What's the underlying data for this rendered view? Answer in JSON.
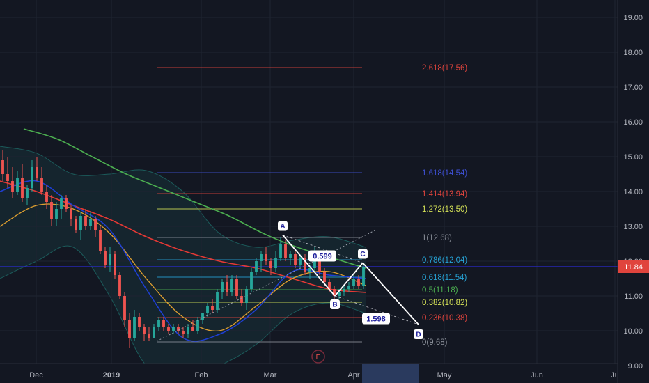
{
  "chart_data": {
    "type": "candlestick",
    "x_axis": {
      "tick_labels": [
        "Dec",
        "2019",
        "Feb",
        "Mar",
        "Apr",
        "May",
        "Jun",
        "Ju"
      ]
    },
    "y_axis": {
      "ylim": [
        8.5,
        19.5
      ],
      "tick_values": [
        9.0,
        10.0,
        11.0,
        12.0,
        13.0,
        14.0,
        15.0,
        16.0,
        17.0,
        18.0,
        19.0
      ],
      "tick_labels": [
        "9.00",
        "10.00",
        "11.00",
        "12.00",
        "13.00",
        "14.00",
        "15.00",
        "16.00",
        "17.00",
        "18.00",
        "19.00"
      ]
    },
    "last_price": {
      "value": 11.84,
      "label": "11.84"
    },
    "candles": [
      {
        "o": 14.9,
        "h": 15.2,
        "l": 14.3,
        "c": 14.5
      },
      {
        "o": 14.5,
        "h": 15.0,
        "l": 14.1,
        "c": 14.3
      },
      {
        "o": 14.3,
        "h": 14.7,
        "l": 13.8,
        "c": 14.0
      },
      {
        "o": 14.0,
        "h": 14.6,
        "l": 13.9,
        "c": 14.4
      },
      {
        "o": 14.4,
        "h": 14.8,
        "l": 13.7,
        "c": 13.8
      },
      {
        "o": 13.8,
        "h": 14.2,
        "l": 13.6,
        "c": 14.1
      },
      {
        "o": 14.1,
        "h": 14.9,
        "l": 14.0,
        "c": 14.7
      },
      {
        "o": 14.7,
        "h": 15.0,
        "l": 14.3,
        "c": 14.4
      },
      {
        "o": 14.4,
        "h": 14.7,
        "l": 13.9,
        "c": 14.0
      },
      {
        "o": 14.0,
        "h": 14.2,
        "l": 13.5,
        "c": 13.7
      },
      {
        "o": 13.7,
        "h": 13.9,
        "l": 13.0,
        "c": 13.2
      },
      {
        "o": 13.2,
        "h": 13.7,
        "l": 13.0,
        "c": 13.5
      },
      {
        "o": 13.5,
        "h": 13.9,
        "l": 13.2,
        "c": 13.8
      },
      {
        "o": 13.8,
        "h": 13.9,
        "l": 13.4,
        "c": 13.5
      },
      {
        "o": 13.5,
        "h": 13.6,
        "l": 13.0,
        "c": 13.2
      },
      {
        "o": 13.2,
        "h": 13.3,
        "l": 12.8,
        "c": 12.9
      },
      {
        "o": 12.9,
        "h": 13.4,
        "l": 12.6,
        "c": 13.3
      },
      {
        "o": 13.3,
        "h": 13.5,
        "l": 12.9,
        "c": 13.0
      },
      {
        "o": 13.0,
        "h": 13.4,
        "l": 12.9,
        "c": 13.2
      },
      {
        "o": 13.2,
        "h": 13.3,
        "l": 12.7,
        "c": 12.9
      },
      {
        "o": 12.9,
        "h": 13.0,
        "l": 12.2,
        "c": 12.3
      },
      {
        "o": 12.3,
        "h": 12.4,
        "l": 11.8,
        "c": 11.9
      },
      {
        "o": 11.9,
        "h": 12.4,
        "l": 11.7,
        "c": 12.2
      },
      {
        "o": 12.2,
        "h": 12.3,
        "l": 11.5,
        "c": 11.6
      },
      {
        "o": 11.6,
        "h": 11.7,
        "l": 10.9,
        "c": 11.0
      },
      {
        "o": 11.0,
        "h": 11.1,
        "l": 10.1,
        "c": 10.3
      },
      {
        "o": 10.3,
        "h": 10.5,
        "l": 9.5,
        "c": 9.8
      },
      {
        "o": 9.8,
        "h": 10.6,
        "l": 9.7,
        "c": 10.4
      },
      {
        "o": 10.4,
        "h": 10.5,
        "l": 10.0,
        "c": 10.1
      },
      {
        "o": 10.1,
        "h": 10.2,
        "l": 9.7,
        "c": 9.9
      },
      {
        "o": 9.9,
        "h": 10.1,
        "l": 9.7,
        "c": 9.8
      },
      {
        "o": 9.8,
        "h": 10.2,
        "l": 9.8,
        "c": 10.1
      },
      {
        "o": 10.1,
        "h": 10.4,
        "l": 10.0,
        "c": 10.3
      },
      {
        "o": 10.3,
        "h": 10.4,
        "l": 10.0,
        "c": 10.1
      },
      {
        "o": 10.1,
        "h": 10.2,
        "l": 9.9,
        "c": 10.0
      },
      {
        "o": 10.0,
        "h": 10.2,
        "l": 9.9,
        "c": 10.1
      },
      {
        "o": 10.1,
        "h": 10.2,
        "l": 9.9,
        "c": 10.0
      },
      {
        "o": 10.0,
        "h": 10.1,
        "l": 9.8,
        "c": 9.9
      },
      {
        "o": 9.9,
        "h": 10.2,
        "l": 9.8,
        "c": 10.1
      },
      {
        "o": 10.1,
        "h": 10.3,
        "l": 10.0,
        "c": 10.0
      },
      {
        "o": 10.0,
        "h": 10.4,
        "l": 9.9,
        "c": 10.3
      },
      {
        "o": 10.3,
        "h": 10.5,
        "l": 10.2,
        "c": 10.5
      },
      {
        "o": 10.5,
        "h": 10.8,
        "l": 10.4,
        "c": 10.7
      },
      {
        "o": 10.7,
        "h": 10.9,
        "l": 10.5,
        "c": 10.6
      },
      {
        "o": 10.6,
        "h": 11.2,
        "l": 10.5,
        "c": 11.1
      },
      {
        "o": 11.1,
        "h": 11.5,
        "l": 10.9,
        "c": 11.4
      },
      {
        "o": 11.4,
        "h": 11.6,
        "l": 11.0,
        "c": 11.1
      },
      {
        "o": 11.1,
        "h": 11.6,
        "l": 11.0,
        "c": 11.5
      },
      {
        "o": 11.5,
        "h": 11.6,
        "l": 10.9,
        "c": 11.0
      },
      {
        "o": 11.0,
        "h": 11.2,
        "l": 10.7,
        "c": 10.8
      },
      {
        "o": 10.8,
        "h": 11.3,
        "l": 10.6,
        "c": 11.2
      },
      {
        "o": 11.2,
        "h": 11.8,
        "l": 11.1,
        "c": 11.7
      },
      {
        "o": 11.7,
        "h": 12.1,
        "l": 11.6,
        "c": 12.0
      },
      {
        "o": 12.0,
        "h": 12.3,
        "l": 11.7,
        "c": 12.2
      },
      {
        "o": 12.2,
        "h": 12.4,
        "l": 11.9,
        "c": 12.0
      },
      {
        "o": 12.0,
        "h": 12.1,
        "l": 11.6,
        "c": 11.8
      },
      {
        "o": 11.8,
        "h": 12.3,
        "l": 11.7,
        "c": 12.1
      },
      {
        "o": 12.1,
        "h": 12.7,
        "l": 12.0,
        "c": 12.5
      },
      {
        "o": 12.5,
        "h": 12.6,
        "l": 12.0,
        "c": 12.1
      },
      {
        "o": 12.1,
        "h": 12.3,
        "l": 11.9,
        "c": 12.2
      },
      {
        "o": 12.2,
        "h": 12.3,
        "l": 11.8,
        "c": 11.9
      },
      {
        "o": 11.9,
        "h": 12.2,
        "l": 11.8,
        "c": 12.1
      },
      {
        "o": 12.1,
        "h": 12.2,
        "l": 11.6,
        "c": 11.7
      },
      {
        "o": 11.7,
        "h": 11.9,
        "l": 11.5,
        "c": 11.8
      },
      {
        "o": 11.8,
        "h": 12.4,
        "l": 11.7,
        "c": 12.2
      },
      {
        "o": 12.2,
        "h": 12.3,
        "l": 11.6,
        "c": 11.7
      },
      {
        "o": 11.7,
        "h": 11.8,
        "l": 11.3,
        "c": 11.4
      },
      {
        "o": 11.4,
        "h": 11.5,
        "l": 11.1,
        "c": 11.2
      },
      {
        "o": 11.2,
        "h": 11.3,
        "l": 10.9,
        "c": 11.0
      },
      {
        "o": 11.0,
        "h": 11.2,
        "l": 10.9,
        "c": 11.1
      },
      {
        "o": 11.1,
        "h": 11.3,
        "l": 11.0,
        "c": 11.2
      },
      {
        "o": 11.2,
        "h": 11.4,
        "l": 11.1,
        "c": 11.3
      },
      {
        "o": 11.3,
        "h": 11.6,
        "l": 11.2,
        "c": 11.5
      },
      {
        "o": 11.5,
        "h": 11.6,
        "l": 11.2,
        "c": 11.3
      },
      {
        "o": 11.3,
        "h": 11.9,
        "l": 11.2,
        "c": 11.84
      }
    ],
    "indicators": {
      "ma_green": [
        15.8,
        15.5,
        15.0,
        14.5,
        14.1,
        13.7,
        13.3,
        12.8,
        12.4,
        12.1,
        11.8
      ],
      "ma_red": [
        14.3,
        14.0,
        13.6,
        13.2,
        12.7,
        12.3,
        12.0,
        11.8,
        11.5,
        11.2,
        11.1
      ],
      "ma_orange": [
        13.0,
        13.6,
        13.5,
        12.8,
        11.5,
        10.4,
        10.0,
        10.7,
        11.5,
        11.7,
        11.3
      ],
      "ma_blue": [
        14.0,
        14.3,
        13.6,
        12.9,
        11.2,
        9.8,
        9.9,
        10.6,
        11.7,
        11.6,
        11.5
      ],
      "bb_upper": [
        15.3,
        15.1,
        14.5,
        14.5,
        14.6,
        14.0,
        12.8,
        12.4,
        12.6,
        12.7,
        12.4
      ],
      "bb_lower": [
        11.5,
        12.0,
        12.4,
        11.0,
        9.0,
        8.7,
        9.0,
        9.6,
        10.5,
        10.8,
        10.5
      ]
    },
    "fib_levels": [
      {
        "label": "2.618(17.56)",
        "value": 17.56,
        "color": "#e0443d"
      },
      {
        "label": "1.618(14.54)",
        "value": 14.54,
        "color": "#3f51d6"
      },
      {
        "label": "1.414(13.94)",
        "value": 13.94,
        "color": "#e0443d"
      },
      {
        "label": "1.272(13.50)",
        "value": 13.5,
        "color": "#d4e157"
      },
      {
        "label": "1(12.68)",
        "value": 12.68,
        "color": "#8a8f99"
      },
      {
        "label": "0.786(12.04)",
        "value": 12.04,
        "color": "#26a3d6"
      },
      {
        "label": "0.618(11.54)",
        "value": 11.54,
        "color": "#26a3d6"
      },
      {
        "label": "0.5(11.18)",
        "value": 11.18,
        "color": "#4caf50"
      },
      {
        "label": "0.382(10.82)",
        "value": 10.82,
        "color": "#d4e157"
      },
      {
        "label": "0.236(10.38)",
        "value": 10.38,
        "color": "#e0443d"
      },
      {
        "label": "0(9.68)",
        "value": 9.68,
        "color": "#8a8f99"
      }
    ],
    "abcd_pattern": {
      "points": [
        {
          "label": "A",
          "value": 12.75
        },
        {
          "label": "B",
          "value": 11.0
        },
        {
          "label": "C",
          "value": 11.95
        },
        {
          "label": "D",
          "value": 10.18
        }
      ],
      "ratios": [
        {
          "label": "0.599"
        },
        {
          "label": "1.598"
        }
      ]
    },
    "event_marker": {
      "label": "E"
    }
  }
}
